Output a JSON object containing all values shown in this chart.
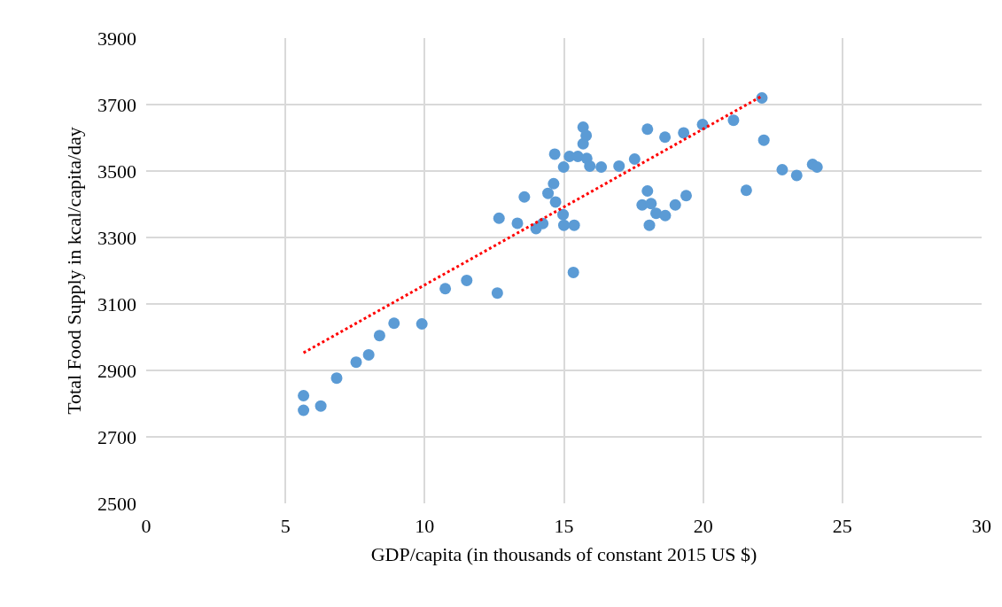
{
  "chart_data": {
    "type": "scatter",
    "xlabel": "GDP/capita (in thousands of constant 2015 US $)",
    "ylabel": "Total Food Supply in kcal/capita/day",
    "xlim": [
      0,
      30
    ],
    "xticks": [
      0,
      5,
      10,
      15,
      20,
      25,
      30
    ],
    "ylim": [
      2500,
      3900
    ],
    "yticks": [
      2500,
      2700,
      2900,
      3100,
      3300,
      3500,
      3700,
      3900
    ],
    "grid": true,
    "series": [
      {
        "marker": "circle",
        "color": "#5b9bd5",
        "x": [
          5.65,
          5.65,
          6.27,
          6.84,
          7.54,
          7.99,
          8.38,
          8.9,
          9.9,
          10.74,
          11.51,
          12.61,
          12.67,
          13.33,
          13.58,
          14.0,
          14.24,
          14.43,
          14.63,
          14.67,
          14.7,
          14.97,
          14.99,
          15.0,
          15.2,
          15.34,
          15.37,
          15.5,
          15.69,
          15.69,
          15.8,
          15.82,
          15.93,
          16.34,
          16.98,
          17.54,
          17.81,
          18.0,
          18.0,
          18.07,
          18.13,
          18.31,
          18.63,
          18.64,
          19.0,
          19.3,
          19.39,
          19.98,
          21.09,
          21.55,
          22.11,
          22.18,
          22.84,
          23.36,
          23.93,
          24.09
        ],
        "values": [
          2824,
          2780,
          2793,
          2877,
          2925,
          2947,
          3005,
          3042,
          3040,
          3146,
          3171,
          3133,
          3358,
          3343,
          3422,
          3327,
          3342,
          3433,
          3462,
          3551,
          3407,
          3369,
          3512,
          3337,
          3544,
          3195,
          3337,
          3544,
          3632,
          3582,
          3607,
          3538,
          3515,
          3512,
          3515,
          3536,
          3398,
          3626,
          3440,
          3337,
          3402,
          3373,
          3602,
          3366,
          3398,
          3615,
          3426,
          3640,
          3653,
          3442,
          3720,
          3593,
          3504,
          3487,
          3520,
          3512
        ]
      },
      {
        "type": "line",
        "color": "#ff0000",
        "line_style": "dotted",
        "x": [
          5.65,
          22.1
        ],
        "values": [
          2953,
          3725
        ]
      }
    ]
  }
}
